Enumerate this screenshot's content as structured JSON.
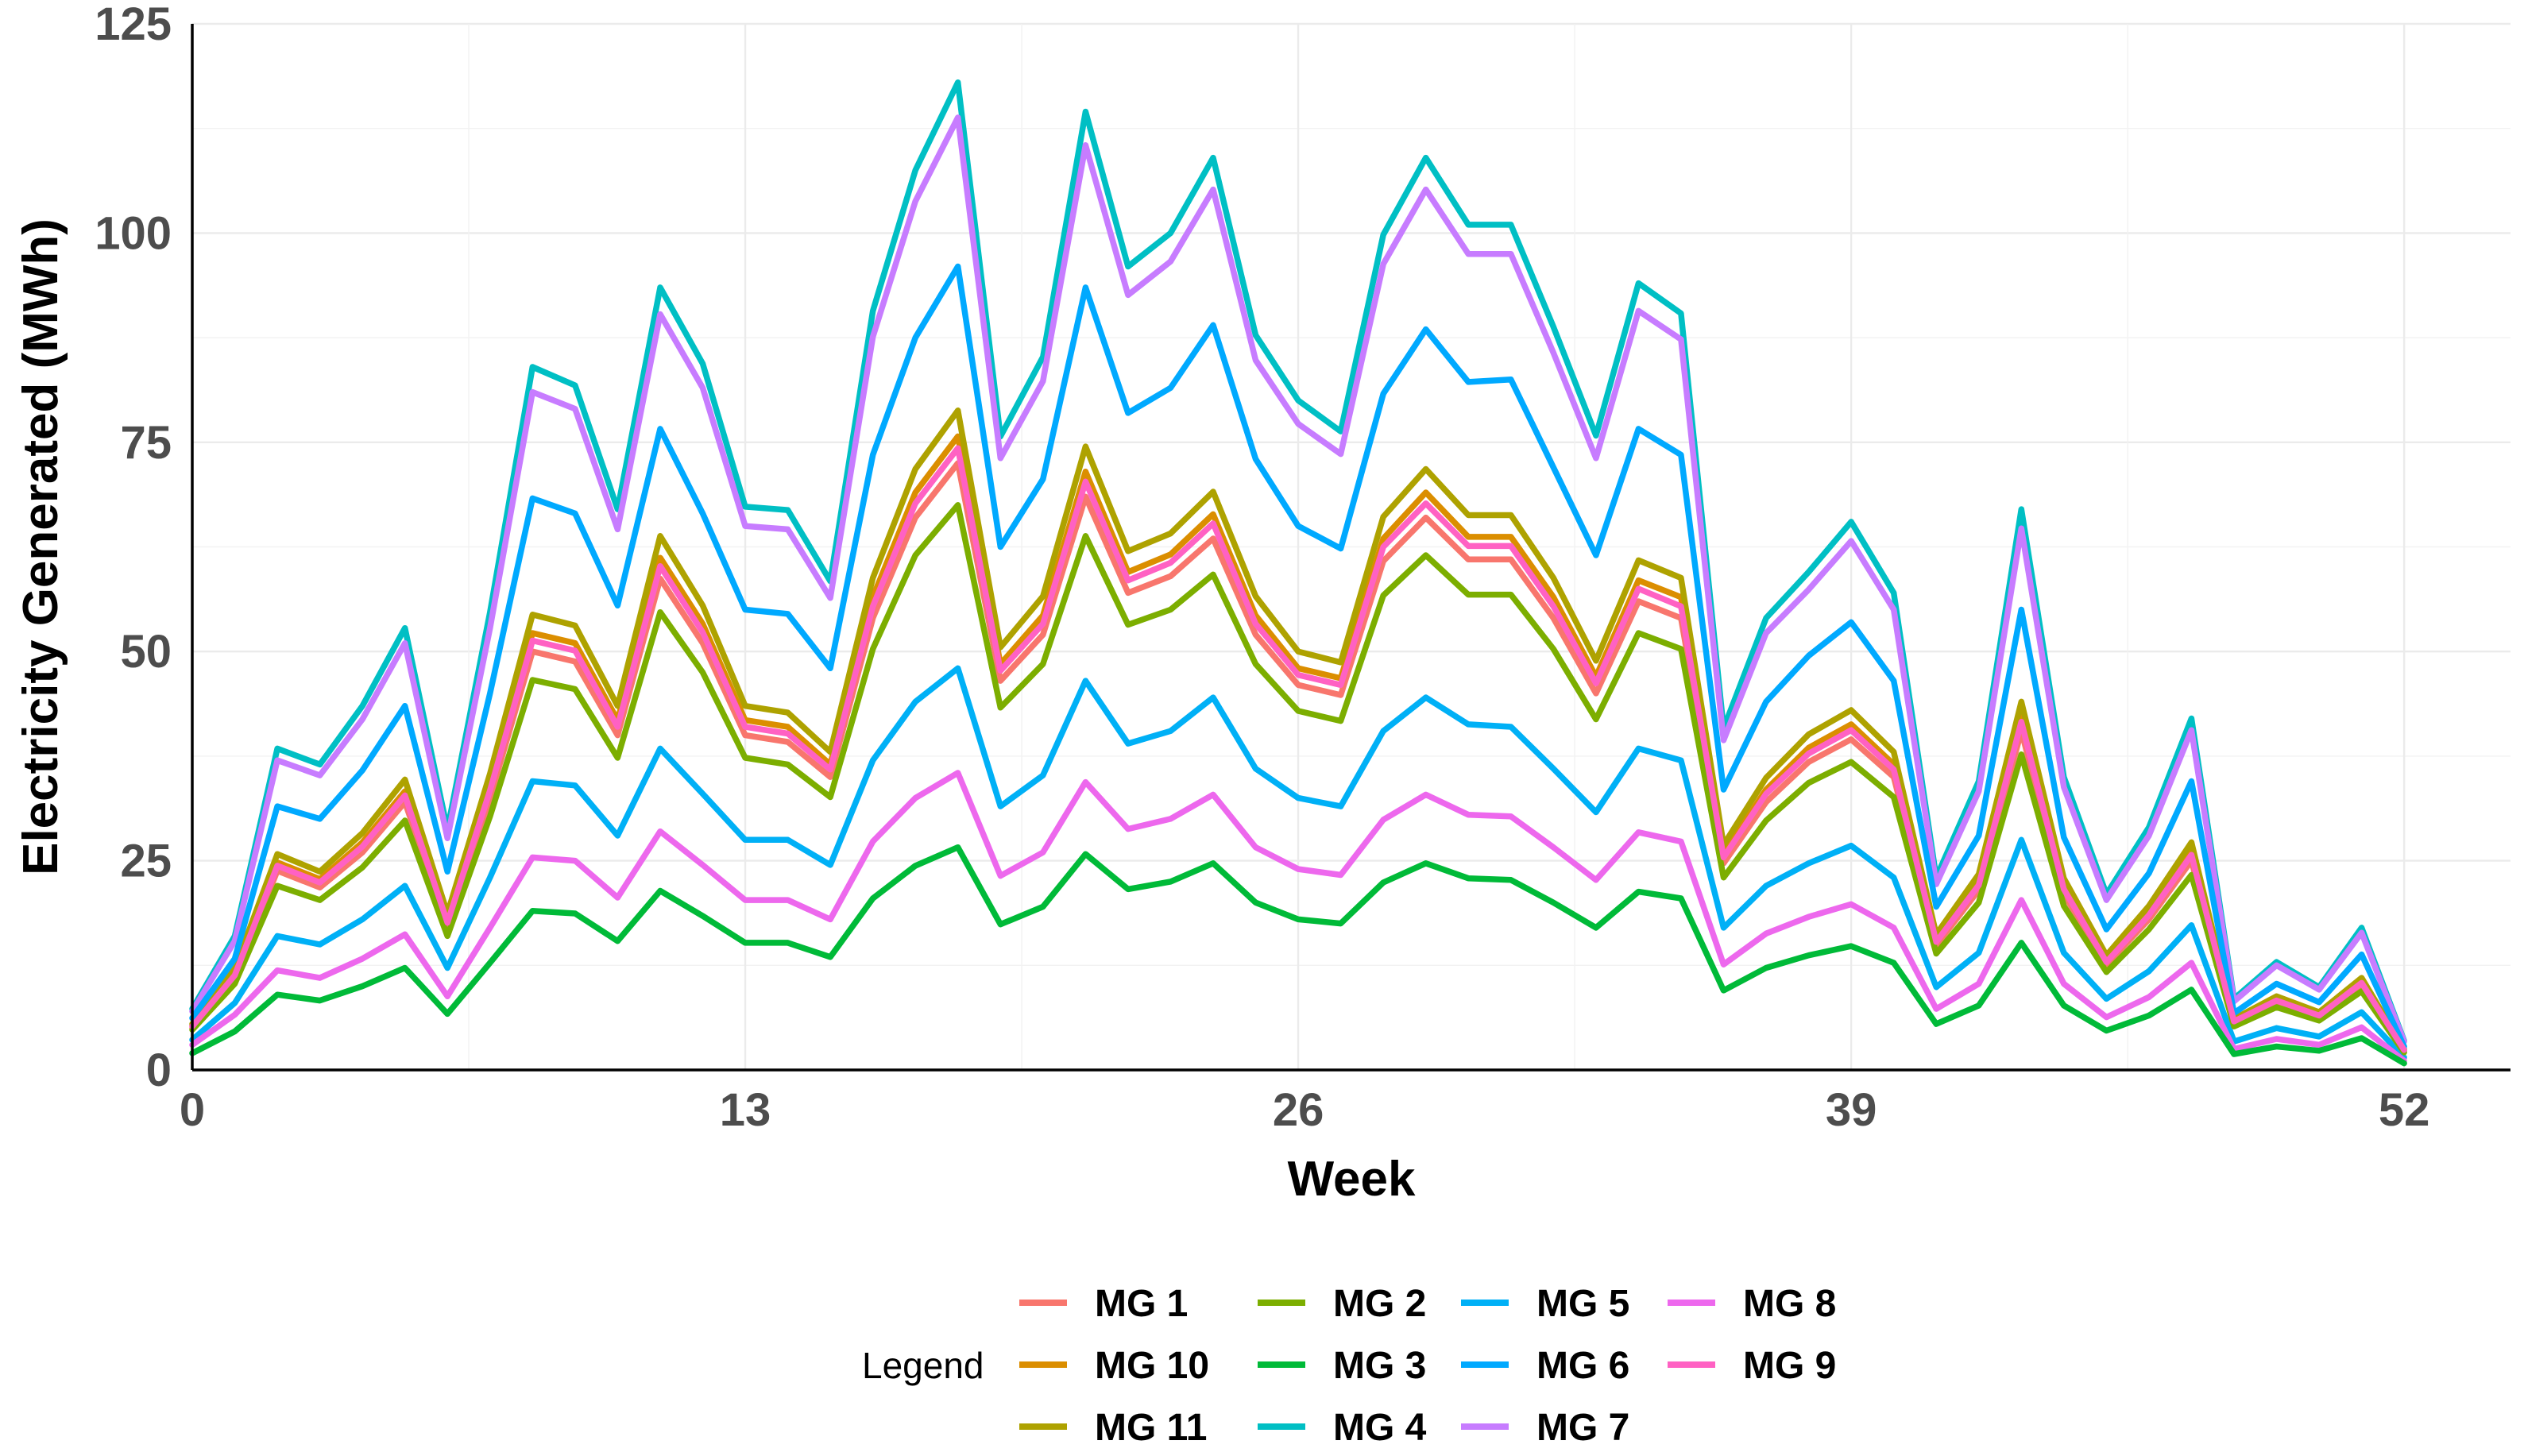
{
  "chart_data": {
    "type": "line",
    "xlabel": "Week",
    "ylabel": "Electricity Generated (MWh)",
    "xlim": [
      0,
      54.5
    ],
    "ylim": [
      0,
      125
    ],
    "x_ticks": [
      0,
      13,
      26,
      39,
      52
    ],
    "y_ticks": [
      0,
      25,
      50,
      75,
      100,
      125
    ],
    "grid": true,
    "legend": {
      "title": "Legend",
      "position": "bottom",
      "columns": 4
    },
    "x": [
      0,
      1,
      2,
      3,
      4,
      5,
      6,
      7,
      8,
      9,
      10,
      11,
      12,
      13,
      14,
      15,
      16,
      17,
      18,
      19,
      20,
      21,
      22,
      23,
      24,
      25,
      26,
      27,
      28,
      29,
      30,
      31,
      32,
      33,
      34,
      35,
      36,
      37,
      38,
      39,
      40,
      41,
      42,
      43,
      44,
      45,
      46,
      47,
      48,
      49,
      50,
      51,
      52
    ],
    "series": [
      {
        "name": "MG 1",
        "color": "#F8766D",
        "values": [
          5,
          11,
          23.8,
          21.8,
          26,
          32,
          17.2,
          32.5,
          50,
          48.8,
          40,
          58.7,
          51,
          40,
          39.2,
          35,
          54,
          66,
          72.5,
          46.5,
          52,
          68.5,
          57,
          59,
          63.5,
          52,
          46,
          44.8,
          60.8,
          66,
          61,
          61,
          54,
          45,
          56,
          54,
          24.7,
          32,
          36.8,
          39.5,
          35,
          14.9,
          21.5,
          40.5,
          21,
          12.6,
          18,
          25,
          5.6,
          8.1,
          6.3,
          10.1,
          2.3
        ]
      },
      {
        "name": "MG 10",
        "color": "#DB8E00",
        "values": [
          5.3,
          11.6,
          24.8,
          22.8,
          27.2,
          33.3,
          17.9,
          34,
          52.2,
          51,
          41.8,
          61.2,
          53.3,
          41.8,
          41,
          36.5,
          56.5,
          69,
          75.7,
          48.5,
          54.3,
          71.5,
          59.5,
          61.6,
          66.4,
          54.3,
          48,
          46.8,
          63.5,
          69,
          63.7,
          63.7,
          56.5,
          47,
          58.5,
          56.5,
          25.8,
          33.5,
          38.5,
          41.3,
          36.5,
          15.5,
          22.5,
          42.3,
          22,
          13.2,
          18.8,
          26.1,
          5.9,
          8.5,
          6.6,
          10.5,
          2.4
        ]
      },
      {
        "name": "MG 11",
        "color": "#AEA200",
        "values": [
          5.5,
          12.1,
          25.8,
          23.7,
          28.3,
          34.7,
          18.7,
          35.4,
          54.4,
          53.1,
          43.5,
          63.8,
          55.5,
          43.5,
          42.7,
          38,
          58.8,
          71.8,
          78.8,
          50.5,
          56.6,
          74.5,
          62,
          64.1,
          69.1,
          56.6,
          50,
          48.7,
          66.1,
          71.8,
          66.3,
          66.3,
          58.8,
          48.9,
          60.9,
          58.8,
          26.9,
          34.9,
          40.1,
          43,
          38,
          16.2,
          23.4,
          44,
          22.9,
          13.7,
          19.6,
          27.2,
          6.1,
          8.8,
          6.9,
          11,
          2.5
        ]
      },
      {
        "name": "MG 4",
        "color": "#00BFC4",
        "values": [
          7.3,
          16,
          38.4,
          36.5,
          43.5,
          52.8,
          28.7,
          54.7,
          84,
          81.8,
          67,
          93.5,
          84.4,
          67.3,
          66.9,
          58.4,
          90.7,
          107.5,
          118,
          75.7,
          85.2,
          114.5,
          96,
          100,
          109,
          87.8,
          80,
          76.3,
          99.8,
          109,
          101,
          101,
          88.8,
          75.8,
          94,
          90.4,
          40.8,
          54,
          59.5,
          65.5,
          57,
          23,
          34.5,
          67,
          35,
          21,
          29,
          42,
          8.5,
          12.9,
          9.9,
          17,
          3.5
        ]
      },
      {
        "name": "MG 7",
        "color": "#C77CFF",
        "values": [
          7,
          15.4,
          37,
          35.2,
          41.9,
          51,
          27.7,
          52.8,
          81,
          79,
          64.6,
          90.3,
          81.5,
          65,
          64.6,
          56.4,
          87.6,
          103.8,
          113.8,
          73.1,
          82.3,
          110.5,
          92.6,
          96.6,
          105.2,
          84.8,
          77.2,
          73.6,
          96.3,
          105.2,
          97.5,
          97.5,
          85.7,
          73.1,
          90.7,
          87.3,
          39.4,
          52.2,
          57.4,
          63.2,
          55,
          22.2,
          33.3,
          64.7,
          33.8,
          20.3,
          28,
          40.6,
          8.2,
          12.5,
          9.6,
          16.4,
          3.4
        ]
      },
      {
        "name": "MG 6",
        "color": "#00A9FF",
        "values": [
          6.2,
          13.3,
          31.5,
          30,
          35.8,
          43.5,
          23.7,
          45,
          68.3,
          66.5,
          55.5,
          76.6,
          66.5,
          55,
          54.5,
          48,
          73.5,
          87.5,
          96,
          62.5,
          70.6,
          93.5,
          78.5,
          81.5,
          89,
          73,
          65,
          62.3,
          80.8,
          88.5,
          82.2,
          82.5,
          72,
          61.5,
          76.6,
          73.5,
          33.5,
          44,
          49.5,
          53.5,
          46.5,
          19.5,
          28,
          55,
          27.8,
          16.8,
          23.5,
          34.5,
          6.8,
          10.3,
          8.1,
          13.8,
          2.8
        ]
      },
      {
        "name": "MG 5",
        "color": "#00B0F6",
        "values": [
          3.6,
          8,
          16,
          15,
          18,
          22,
          12.2,
          23,
          34.5,
          34,
          28,
          38.4,
          33,
          27.5,
          27.5,
          24.5,
          37,
          44,
          48,
          31.5,
          35.2,
          46.5,
          39,
          40.5,
          44.5,
          36,
          32.5,
          31.5,
          40.5,
          44.5,
          41.3,
          41,
          36,
          30.8,
          38.4,
          37,
          17,
          22,
          24.7,
          26.8,
          23,
          9.9,
          14,
          27.5,
          14,
          8.5,
          11.8,
          17.3,
          3.4,
          5,
          4,
          6.9,
          1.5
        ]
      },
      {
        "name": "MG 8",
        "color": "#ED68ED",
        "values": [
          3,
          6.6,
          11.9,
          11,
          13.3,
          16.2,
          8.8,
          17,
          25.4,
          25,
          20.6,
          28.5,
          24.5,
          20.3,
          20.3,
          18,
          27.3,
          32.5,
          35.5,
          23.2,
          26,
          34.4,
          28.8,
          30,
          32.9,
          26.6,
          24,
          23.3,
          29.9,
          32.9,
          30.5,
          30.3,
          26.6,
          22.7,
          28.4,
          27.3,
          12.6,
          16.3,
          18.3,
          19.8,
          17,
          7.3,
          10.3,
          20.3,
          10.3,
          6.3,
          8.7,
          12.8,
          2.5,
          3.7,
          3,
          5.1,
          1.1
        ]
      },
      {
        "name": "MG 3",
        "color": "#00BA38",
        "values": [
          2,
          4.6,
          9,
          8.3,
          10,
          12.2,
          6.7,
          12.8,
          19,
          18.7,
          15.4,
          21.4,
          18.4,
          15.2,
          15.2,
          13.5,
          20.5,
          24.4,
          26.6,
          17.4,
          19.5,
          25.8,
          21.6,
          22.5,
          24.7,
          20,
          18,
          17.5,
          22.4,
          24.7,
          22.9,
          22.7,
          20,
          17,
          21.3,
          20.5,
          9.5,
          12.2,
          13.7,
          14.8,
          12.8,
          5.5,
          7.7,
          15.2,
          7.7,
          4.7,
          6.5,
          9.6,
          1.9,
          2.8,
          2.3,
          3.8,
          0.8
        ]
      },
      {
        "name": "MG 2",
        "color": "#7CAE00",
        "values": [
          4.8,
          10.3,
          22,
          20.3,
          24.2,
          29.8,
          16,
          30.3,
          46.6,
          45.5,
          37.3,
          54.7,
          47.5,
          37.3,
          36.5,
          32.6,
          50.3,
          61.5,
          67.5,
          43.3,
          48.5,
          63.8,
          53.2,
          55,
          59.2,
          48.5,
          42.9,
          41.7,
          56.7,
          61.5,
          56.8,
          56.8,
          50.3,
          41.9,
          52.2,
          50.3,
          23,
          29.8,
          34.3,
          36.8,
          32.6,
          13.9,
          20,
          37.7,
          19.6,
          11.7,
          16.8,
          23.3,
          5.2,
          7.5,
          5.9,
          9.4,
          2.1
        ]
      },
      {
        "name": "MG 9",
        "color": "#FF61C3",
        "values": [
          5.2,
          11.3,
          24.4,
          22.4,
          26.7,
          32.8,
          17.6,
          33.4,
          51.3,
          50.1,
          41,
          60.2,
          52.3,
          41,
          40.2,
          35.9,
          55.4,
          67.7,
          74.3,
          47.7,
          53.3,
          70.3,
          58.5,
          60.6,
          65.3,
          53.3,
          47.2,
          46,
          62.5,
          67.7,
          62.6,
          62.6,
          55.4,
          46.2,
          57.5,
          55.4,
          25.4,
          33,
          37.8,
          40.6,
          35.9,
          15.3,
          22.1,
          41.6,
          21.6,
          12.9,
          18.5,
          25.7,
          5.8,
          8.3,
          6.5,
          10.4,
          2.4
        ]
      }
    ]
  },
  "legend_rows": [
    [
      "MG 1",
      "MG 2",
      "MG 5",
      "MG 8"
    ],
    [
      "MG 10",
      "MG 3",
      "MG 6",
      "MG 9"
    ],
    [
      "MG 11",
      "MG 4",
      "MG 7",
      ""
    ]
  ]
}
